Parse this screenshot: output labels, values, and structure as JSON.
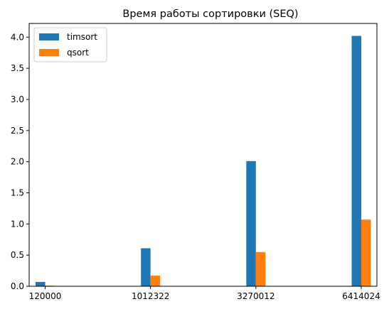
{
  "chart_data": {
    "type": "bar",
    "title": "Время работы сортировки (SEQ)",
    "xlabel": "",
    "ylabel": "",
    "categories": [
      "120000",
      "1012322",
      "3270012",
      "6414024"
    ],
    "series": [
      {
        "name": "timsort",
        "color": "#1f77b4",
        "values": [
          0.07,
          0.61,
          2.01,
          4.02
        ]
      },
      {
        "name": "qsort",
        "color": "#ff7f0e",
        "values": [
          0.01,
          0.17,
          0.55,
          1.07
        ]
      }
    ],
    "ylim": [
      0,
      4.22
    ],
    "yticks": [
      "0.0",
      "0.5",
      "1.0",
      "1.5",
      "2.0",
      "2.5",
      "3.0",
      "3.5",
      "4.0"
    ],
    "legend_position": "top-left",
    "grid": false
  }
}
